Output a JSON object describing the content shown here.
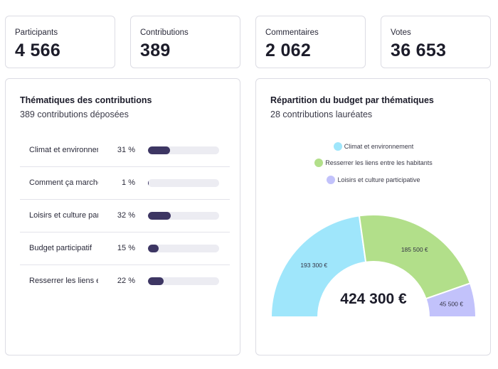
{
  "stats": [
    {
      "label": "Participants",
      "value": "4 566"
    },
    {
      "label": "Contributions",
      "value": "389"
    },
    {
      "label": "Commentaires",
      "value": "2 062"
    },
    {
      "label": "Votes",
      "value": "36 653"
    }
  ],
  "thematiques": {
    "title": "Thématiques des contributions",
    "subtitle": "389 contributions déposées",
    "rows": [
      {
        "name": "Climat et environnement",
        "pct_label": "31 %",
        "pct": 31
      },
      {
        "name": "Comment ça marche",
        "pct_label": "1 %",
        "pct": 1
      },
      {
        "name": "Loisirs et culture participative",
        "pct_label": "32 %",
        "pct": 32
      },
      {
        "name": "Budget participatif",
        "pct_label": "15 %",
        "pct": 15
      },
      {
        "name": "Resserrer les liens entre les habitants",
        "pct_label": "22 %",
        "pct": 22
      }
    ]
  },
  "budget": {
    "title": "Répartition du budget par thématiques",
    "subtitle": "28 contributions lauréates",
    "total": "424 300 €"
  },
  "chart_data": {
    "type": "pie",
    "subtype": "semi-donut",
    "categories": [
      "Climat et environnement",
      "Resserrer les liens entre les habitants",
      "Loisirs et culture participative"
    ],
    "values": [
      193300,
      185500,
      45500
    ],
    "value_labels": [
      "193 300 €",
      "185 500 €",
      "45 500 €"
    ],
    "colors": [
      "#9fe6fb",
      "#b2df8a",
      "#c2c2fb"
    ],
    "legend_position": "top-center",
    "center_label": "424 300 €"
  }
}
